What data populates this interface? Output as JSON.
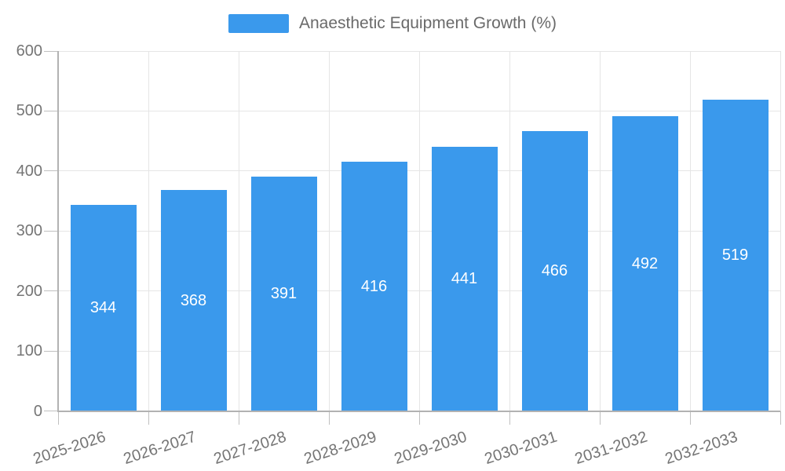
{
  "legend": {
    "label": "Anaesthetic Equipment Growth (%)"
  },
  "chart_data": {
    "type": "bar",
    "title": "",
    "xlabel": "",
    "ylabel": "",
    "categories": [
      "2025-2026",
      "2026-2027",
      "2027-2028",
      "2028-2029",
      "2029-2030",
      "2030-2031",
      "2031-2032",
      "2032-2033"
    ],
    "series": [
      {
        "name": "Anaesthetic Equipment Growth (%)",
        "values": [
          344,
          368,
          391,
          416,
          441,
          466,
          492,
          519
        ]
      }
    ],
    "value_labels": [
      "344",
      "368",
      "391",
      "416",
      "441",
      "466",
      "492",
      "519"
    ],
    "ylim": [
      0,
      600
    ],
    "yticks": [
      0,
      100,
      200,
      300,
      400,
      500,
      600
    ],
    "grid": true,
    "legend_position": "top-center",
    "colors": {
      "bar": "#3a99ec",
      "value_label": "#ffffff",
      "axis_label": "#757575",
      "legend_text": "#6a6a6a",
      "gridline": "#e5e5e5",
      "axis_line": "#b2b2b2",
      "background": "#ffffff"
    }
  }
}
